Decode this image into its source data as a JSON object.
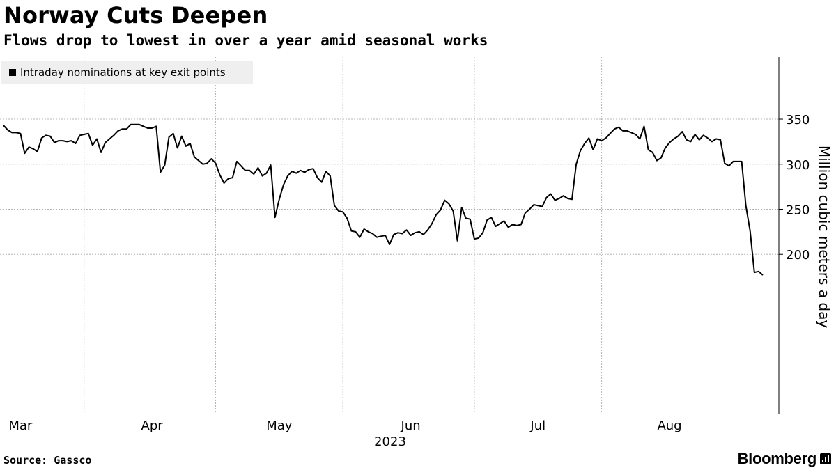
{
  "header": {
    "title": "Norway Cuts Deepen",
    "subtitle": "Flows drop to lowest in over a year amid seasonal works"
  },
  "legend": {
    "label": "Intraday nominations at key exit points"
  },
  "footer": {
    "source": "Source: Gassco",
    "brand": "Bloomberg"
  },
  "colors": {
    "line": "#000000",
    "grid": "#b4b4b4",
    "legend_bg": "#efefef"
  },
  "chart_data": {
    "type": "line",
    "title": "Norway Cuts Deepen",
    "subtitle": "Flows drop to lowest in over a year amid seasonal works",
    "ylabel": "Million cubic meters a day",
    "xlabel": "2023",
    "x_start": "2023-02-25",
    "x_range": [
      "2023-02-25",
      "2023-08-28"
    ],
    "ylim": [
      170,
      362
    ],
    "yticks": [
      200,
      250,
      300,
      350
    ],
    "xticks": [
      {
        "label": "Mar",
        "date": "2023-03-01"
      },
      {
        "label": "Apr",
        "date": "2023-04-01"
      },
      {
        "label": "May",
        "date": "2023-05-01"
      },
      {
        "label": "Jun",
        "date": "2023-06-01"
      },
      {
        "label": "Jul",
        "date": "2023-07-01"
      },
      {
        "label": "Aug",
        "date": "2023-08-01"
      }
    ],
    "year_label": "2023",
    "grid": true,
    "legend_position": "top-left",
    "series": [
      {
        "name": "Intraday nominations at key exit points",
        "points": [
          [
            "2023-02-25",
            343
          ],
          [
            "2023-02-26",
            338
          ],
          [
            "2023-02-27",
            335
          ],
          [
            "2023-02-28",
            335
          ],
          [
            "2023-03-01",
            334
          ],
          [
            "2023-03-02",
            312
          ],
          [
            "2023-03-03",
            319
          ],
          [
            "2023-03-04",
            317
          ],
          [
            "2023-03-05",
            314
          ],
          [
            "2023-03-06",
            329
          ],
          [
            "2023-03-07",
            332
          ],
          [
            "2023-03-08",
            331
          ],
          [
            "2023-03-09",
            324
          ],
          [
            "2023-03-10",
            326
          ],
          [
            "2023-03-11",
            326
          ],
          [
            "2023-03-12",
            325
          ],
          [
            "2023-03-13",
            326
          ],
          [
            "2023-03-14",
            323
          ],
          [
            "2023-03-15",
            332
          ],
          [
            "2023-03-16",
            333
          ],
          [
            "2023-03-17",
            334
          ],
          [
            "2023-03-18",
            321
          ],
          [
            "2023-03-19",
            328
          ],
          [
            "2023-03-20",
            313
          ],
          [
            "2023-03-21",
            324
          ],
          [
            "2023-03-22",
            328
          ],
          [
            "2023-03-23",
            332
          ],
          [
            "2023-03-24",
            337
          ],
          [
            "2023-03-25",
            339
          ],
          [
            "2023-03-26",
            339
          ],
          [
            "2023-03-27",
            344
          ],
          [
            "2023-03-28",
            344
          ],
          [
            "2023-03-29",
            344
          ],
          [
            "2023-03-30",
            342
          ],
          [
            "2023-03-31",
            340
          ],
          [
            "2023-04-01",
            340
          ],
          [
            "2023-04-02",
            342
          ],
          [
            "2023-04-03",
            291
          ],
          [
            "2023-04-04",
            299
          ],
          [
            "2023-04-05",
            330
          ],
          [
            "2023-04-06",
            334
          ],
          [
            "2023-04-07",
            318
          ],
          [
            "2023-04-08",
            331
          ],
          [
            "2023-04-09",
            320
          ],
          [
            "2023-04-10",
            323
          ],
          [
            "2023-04-11",
            308
          ],
          [
            "2023-04-12",
            304
          ],
          [
            "2023-04-13",
            300
          ],
          [
            "2023-04-14",
            301
          ],
          [
            "2023-04-15",
            306
          ],
          [
            "2023-04-16",
            301
          ],
          [
            "2023-04-17",
            288
          ],
          [
            "2023-04-18",
            279
          ],
          [
            "2023-04-19",
            284
          ],
          [
            "2023-04-20",
            285
          ],
          [
            "2023-04-21",
            303
          ],
          [
            "2023-04-22",
            298
          ],
          [
            "2023-04-23",
            293
          ],
          [
            "2023-04-24",
            293
          ],
          [
            "2023-04-25",
            289
          ],
          [
            "2023-04-26",
            296
          ],
          [
            "2023-04-27",
            287
          ],
          [
            "2023-04-28",
            290
          ],
          [
            "2023-04-29",
            299
          ],
          [
            "2023-04-30",
            241
          ],
          [
            "2023-05-01",
            261
          ],
          [
            "2023-05-02",
            277
          ],
          [
            "2023-05-03",
            287
          ],
          [
            "2023-05-04",
            292
          ],
          [
            "2023-05-05",
            290
          ],
          [
            "2023-05-06",
            293
          ],
          [
            "2023-05-07",
            291
          ],
          [
            "2023-05-08",
            294
          ],
          [
            "2023-05-09",
            295
          ],
          [
            "2023-05-10",
            285
          ],
          [
            "2023-05-11",
            280
          ],
          [
            "2023-05-12",
            292
          ],
          [
            "2023-05-13",
            287
          ],
          [
            "2023-05-14",
            254
          ],
          [
            "2023-05-15",
            248
          ],
          [
            "2023-05-16",
            247
          ],
          [
            "2023-05-17",
            240
          ],
          [
            "2023-05-18",
            226
          ],
          [
            "2023-05-19",
            225
          ],
          [
            "2023-05-20",
            219
          ],
          [
            "2023-05-21",
            228
          ],
          [
            "2023-05-22",
            225
          ],
          [
            "2023-05-23",
            223
          ],
          [
            "2023-05-24",
            219
          ],
          [
            "2023-05-25",
            220
          ],
          [
            "2023-05-26",
            221
          ],
          [
            "2023-05-27",
            211
          ],
          [
            "2023-05-28",
            222
          ],
          [
            "2023-05-29",
            224
          ],
          [
            "2023-05-30",
            223
          ],
          [
            "2023-05-31",
            227
          ],
          [
            "2023-06-01",
            221
          ],
          [
            "2023-06-02",
            224
          ],
          [
            "2023-06-03",
            225
          ],
          [
            "2023-06-04",
            222
          ],
          [
            "2023-06-05",
            227
          ],
          [
            "2023-06-06",
            234
          ],
          [
            "2023-06-07",
            244
          ],
          [
            "2023-06-08",
            249
          ],
          [
            "2023-06-09",
            260
          ],
          [
            "2023-06-10",
            256
          ],
          [
            "2023-06-11",
            248
          ],
          [
            "2023-06-12",
            215
          ],
          [
            "2023-06-13",
            252
          ],
          [
            "2023-06-14",
            240
          ],
          [
            "2023-06-15",
            239
          ],
          [
            "2023-06-16",
            217
          ],
          [
            "2023-06-17",
            218
          ],
          [
            "2023-06-18",
            224
          ],
          [
            "2023-06-19",
            238
          ],
          [
            "2023-06-20",
            241
          ],
          [
            "2023-06-21",
            231
          ],
          [
            "2023-06-22",
            234
          ],
          [
            "2023-06-23",
            237
          ],
          [
            "2023-06-24",
            230
          ],
          [
            "2023-06-25",
            233
          ],
          [
            "2023-06-26",
            232
          ],
          [
            "2023-06-27",
            233
          ],
          [
            "2023-06-28",
            246
          ],
          [
            "2023-06-29",
            250
          ],
          [
            "2023-06-30",
            255
          ],
          [
            "2023-07-01",
            254
          ],
          [
            "2023-07-02",
            253
          ],
          [
            "2023-07-03",
            263
          ],
          [
            "2023-07-04",
            267
          ],
          [
            "2023-07-05",
            260
          ],
          [
            "2023-07-06",
            262
          ],
          [
            "2023-07-07",
            265
          ],
          [
            "2023-07-08",
            262
          ],
          [
            "2023-07-09",
            261
          ],
          [
            "2023-07-10",
            300
          ],
          [
            "2023-07-11",
            315
          ],
          [
            "2023-07-12",
            323
          ],
          [
            "2023-07-13",
            329
          ],
          [
            "2023-07-14",
            316
          ],
          [
            "2023-07-15",
            328
          ],
          [
            "2023-07-16",
            326
          ],
          [
            "2023-07-17",
            329
          ],
          [
            "2023-07-18",
            334
          ],
          [
            "2023-07-19",
            339
          ],
          [
            "2023-07-20",
            341
          ],
          [
            "2023-07-21",
            337
          ],
          [
            "2023-07-22",
            337
          ],
          [
            "2023-07-23",
            335
          ],
          [
            "2023-07-24",
            333
          ],
          [
            "2023-07-25",
            328
          ],
          [
            "2023-07-26",
            342
          ],
          [
            "2023-07-27",
            316
          ],
          [
            "2023-07-28",
            313
          ],
          [
            "2023-07-29",
            304
          ],
          [
            "2023-07-30",
            307
          ],
          [
            "2023-07-31",
            318
          ],
          [
            "2023-08-01",
            324
          ],
          [
            "2023-08-02",
            328
          ],
          [
            "2023-08-03",
            331
          ],
          [
            "2023-08-04",
            336
          ],
          [
            "2023-08-05",
            327
          ],
          [
            "2023-08-06",
            325
          ],
          [
            "2023-08-07",
            333
          ],
          [
            "2023-08-08",
            327
          ],
          [
            "2023-08-09",
            332
          ],
          [
            "2023-08-10",
            329
          ],
          [
            "2023-08-11",
            325
          ],
          [
            "2023-08-12",
            328
          ],
          [
            "2023-08-13",
            327
          ],
          [
            "2023-08-14",
            301
          ],
          [
            "2023-08-15",
            298
          ],
          [
            "2023-08-16",
            303
          ],
          [
            "2023-08-17",
            303
          ],
          [
            "2023-08-18",
            303
          ],
          [
            "2023-08-19",
            254
          ],
          [
            "2023-08-20",
            226
          ],
          [
            "2023-08-21",
            180
          ],
          [
            "2023-08-22",
            181
          ],
          [
            "2023-08-23",
            177
          ]
        ]
      }
    ]
  }
}
